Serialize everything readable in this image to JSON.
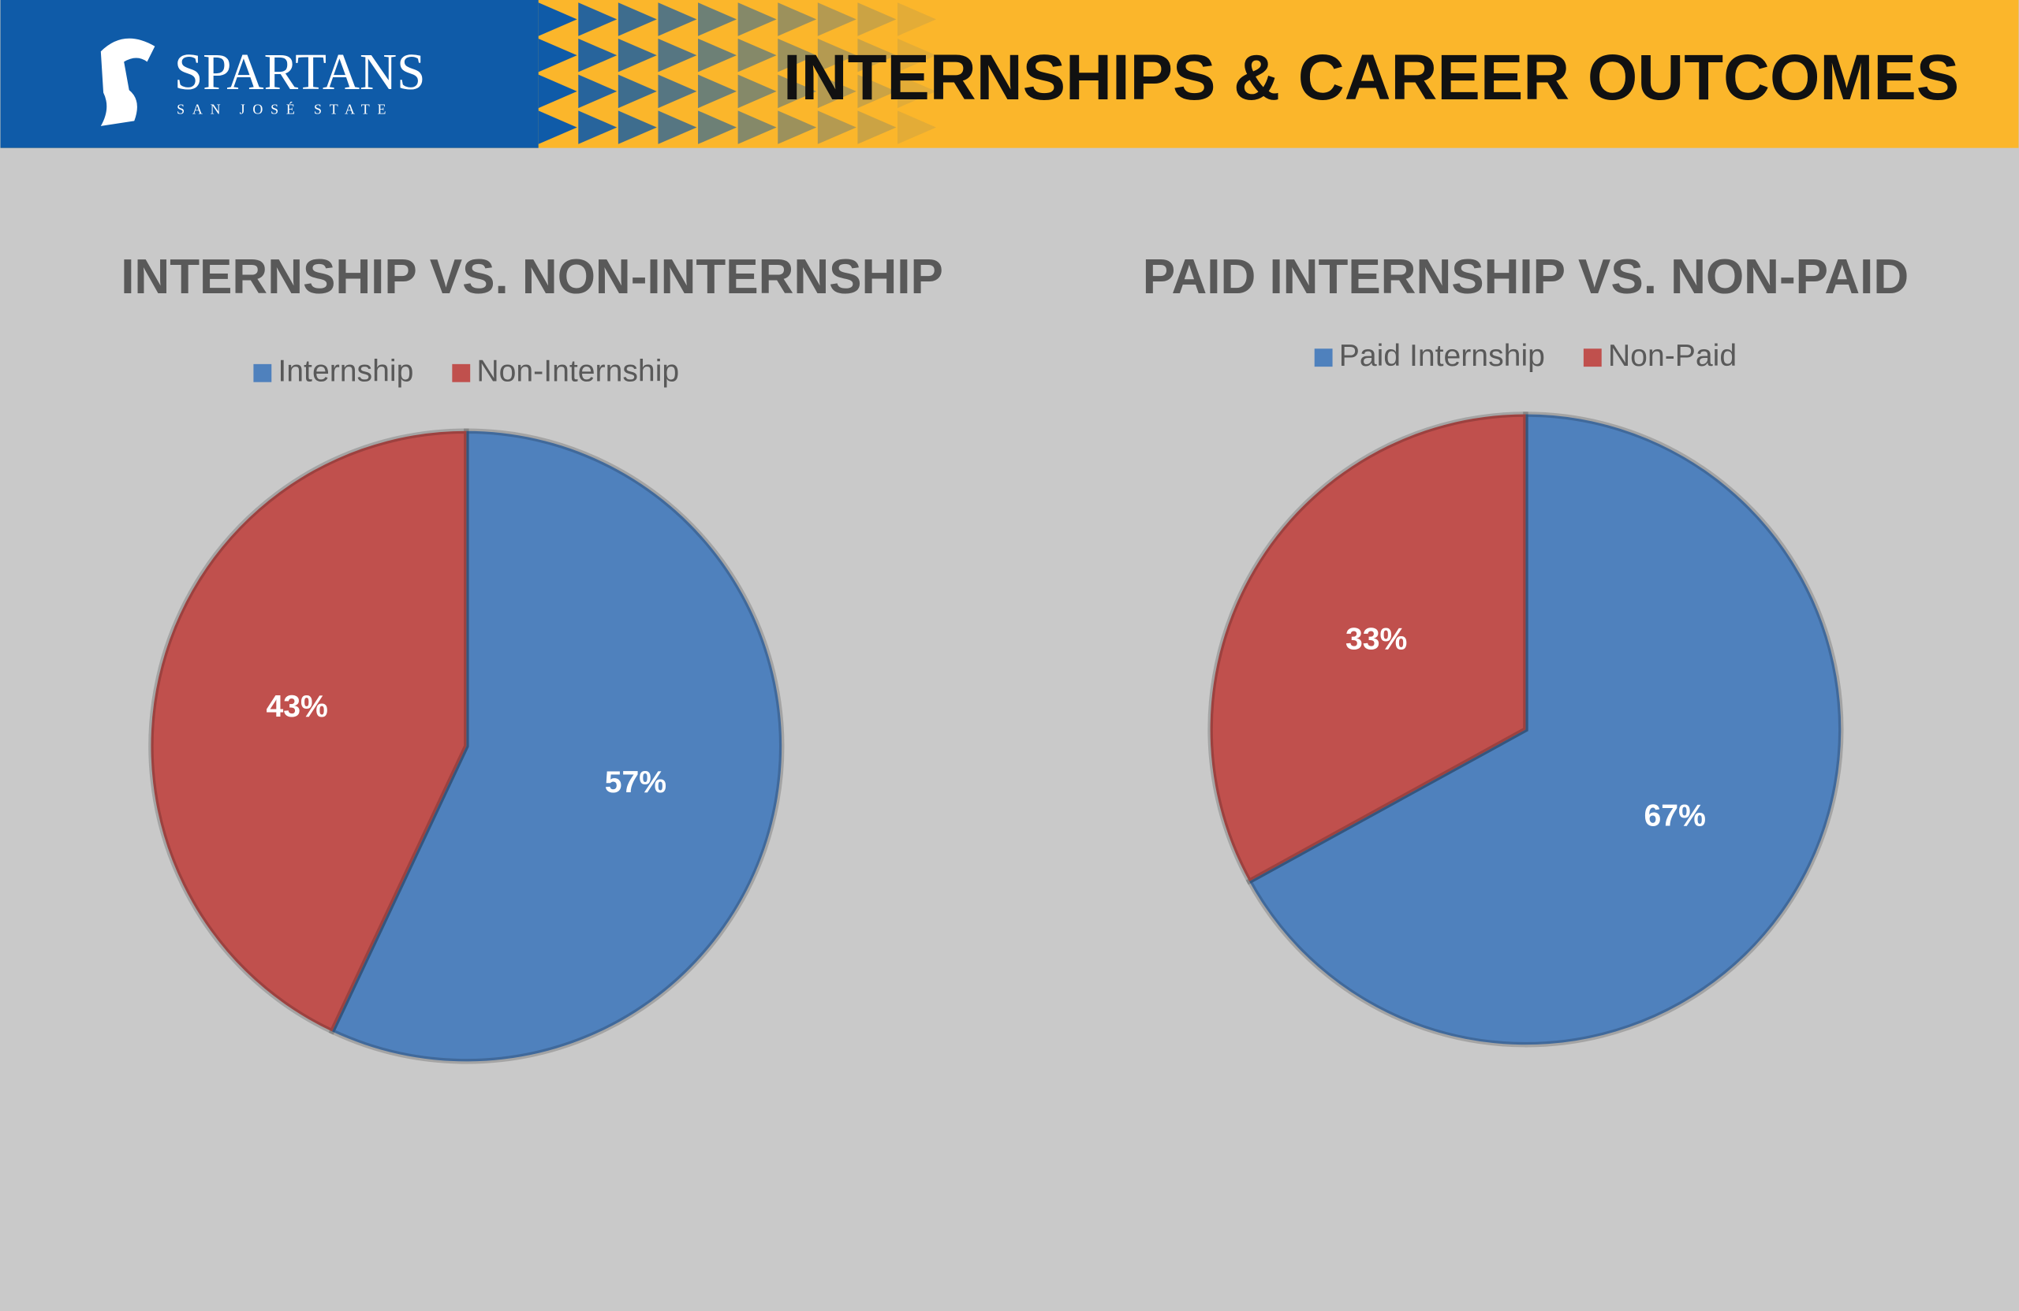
{
  "header": {
    "logo": "SPARTANS",
    "logo_subtitle": "SAN JOSÉ STATE",
    "title": "INTERNSHIPS & CAREER OUTCOMES"
  },
  "chart_data": [
    {
      "type": "pie",
      "title": "INTERNSHIP VS. NON-INTERNSHIP",
      "categories": [
        "Internship",
        "Non-Internship"
      ],
      "values": [
        57,
        43
      ],
      "value_labels": [
        "57%",
        "43%"
      ],
      "colors": [
        "#4f81bd",
        "#c0504d"
      ],
      "legend": "top"
    },
    {
      "type": "pie",
      "title": "PAID INTERNSHIP VS. NON-PAID",
      "categories": [
        "Paid Internship",
        "Non-Paid"
      ],
      "values": [
        67,
        33
      ],
      "value_labels": [
        "67%",
        "33%"
      ],
      "colors": [
        "#4f81bd",
        "#c0504d"
      ],
      "legend": "top"
    }
  ]
}
